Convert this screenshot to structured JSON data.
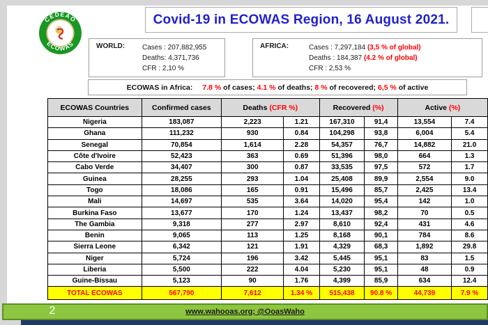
{
  "colors": {
    "title_blue": "#2121CE",
    "accent_red": "#FF0000",
    "table_header_gray": "#D9D9D9",
    "total_row_yellow": "#FFFF00",
    "footer_green": "#8DC63F",
    "footer_navy": "#203864",
    "logo_green": "#1A9622"
  },
  "header": {
    "title": "Covid-19 in ECOWAS Region, 16 August 2021."
  },
  "logo": {
    "top_text": "CEDEAO",
    "bottom_text": "ECOWAS"
  },
  "world_box": {
    "label": "WORLD:",
    "lines": [
      "Cases : 207,882,955",
      "Deaths: 4,371,736",
      "CFR : 2,10 %"
    ]
  },
  "africa_box": {
    "label": "AFRICA:",
    "lines": [
      {
        "text": "Cases : 7,297,184 ",
        "red": "(3,5 % of global)"
      },
      {
        "text": "Deaths : 184,387 ",
        "red": "(4.2 % of global)"
      },
      {
        "text": "CFR : 2,53 %",
        "red": ""
      }
    ]
  },
  "ecowas_line": {
    "label": "ECOWAS in Africa:",
    "parts": [
      {
        "text": "7.8 %",
        "red": true
      },
      {
        "text": " of cases; ",
        "red": false
      },
      {
        "text": "4.1 %",
        "red": true
      },
      {
        "text": " of deaths; ",
        "red": false
      },
      {
        "text": "8 %",
        "red": true
      },
      {
        "text": " of recovered; ",
        "red": false
      },
      {
        "text": "6,5 %",
        "red": true
      },
      {
        "text": " of active",
        "red": false
      }
    ]
  },
  "table": {
    "headers": [
      {
        "label": "ECOWAS Countries",
        "red": "",
        "colspan": 1
      },
      {
        "label": "Confirmed cases",
        "red": "",
        "colspan": 1
      },
      {
        "label": "Deaths ",
        "red": "(CFR %)",
        "colspan": 2
      },
      {
        "label": "Recovered ",
        "red": "(%)",
        "colspan": 2
      },
      {
        "label": "Active ",
        "red": "(%)",
        "colspan": 2
      }
    ],
    "rows": [
      [
        "Nigeria",
        "183,087",
        "2,223",
        "1.21",
        "167,310",
        "91,4",
        "13,554",
        "7.4"
      ],
      [
        "Ghana",
        "111,232",
        "930",
        "0.84",
        "104,298",
        "93,8",
        "6,004",
        "5.4"
      ],
      [
        "Senegal",
        "70,854",
        "1,614",
        "2.28",
        "54,357",
        "76,7",
        "14,882",
        "21.0"
      ],
      [
        "Côte d'Ivoire",
        "52,423",
        "363",
        "0.69",
        "51,396",
        "98,0",
        "664",
        "1.3"
      ],
      [
        "Cabo Verde",
        "34,407",
        "300",
        "0.87",
        "33,535",
        "97,5",
        "572",
        "1.7"
      ],
      [
        "Guinea",
        "28,255",
        "293",
        "1.04",
        "25,408",
        "89,9",
        "2,554",
        "9.0"
      ],
      [
        "Togo",
        "18,086",
        "165",
        "0.91",
        "15,496",
        "85,7",
        "2,425",
        "13.4"
      ],
      [
        "Mali",
        "14,697",
        "535",
        "3.64",
        "14,020",
        "95,4",
        "142",
        "1.0"
      ],
      [
        "Burkina Faso",
        "13,677",
        "170",
        "1.24",
        "13,437",
        "98,2",
        "70",
        "0.5"
      ],
      [
        "The Gambia",
        "9,318",
        "277",
        "2.97",
        "8,610",
        "92,4",
        "431",
        "4.6"
      ],
      [
        "Benin",
        "9,065",
        "113",
        "1.25",
        "8,168",
        "90,1",
        "784",
        "8.6"
      ],
      [
        "Sierra Leone",
        "6,342",
        "121",
        "1.91",
        "4,329",
        "68,3",
        "1,892",
        "29.8"
      ],
      [
        "Niger",
        "5,724",
        "196",
        "3.42",
        "5,445",
        "95,1",
        "83",
        "1.5"
      ],
      [
        "Liberia",
        "5,500",
        "222",
        "4.04",
        "5,230",
        "95,1",
        "48",
        "0.9"
      ],
      [
        "Guine-Bissau",
        "5,123",
        "90",
        "1.76",
        "4,399",
        "85,9",
        "634",
        "12.4"
      ]
    ],
    "total_row": [
      "TOTAL ECOWAS",
      "567,790",
      "7,612",
      "1.34 %",
      "515,438",
      "90.8 %",
      "44,739",
      "7.9 %"
    ]
  },
  "footer": {
    "page_number": "2",
    "link": "www.wahooas.org; @OoasWaho"
  }
}
